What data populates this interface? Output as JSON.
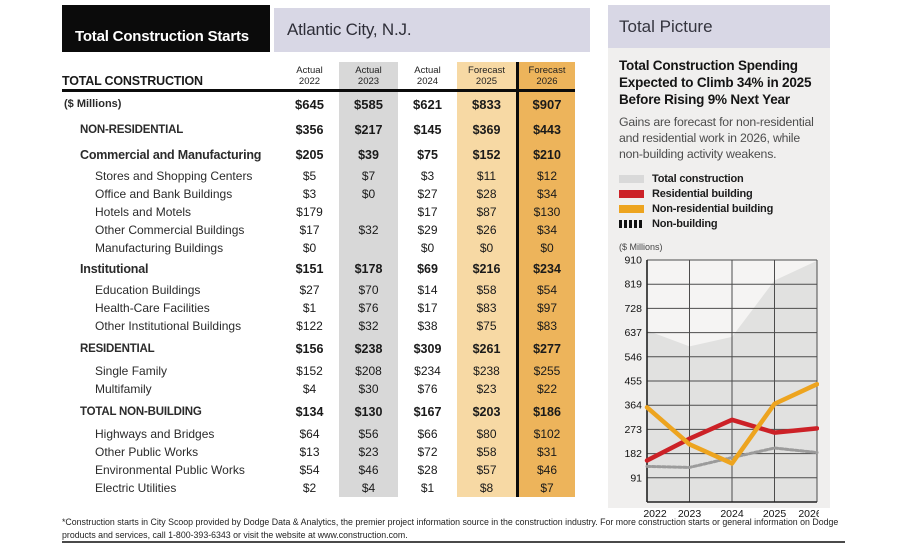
{
  "table": {
    "title": "Total Construction Starts",
    "location": "Atlantic City, N.J.",
    "corner_header": "TOTAL CONSTRUCTION",
    "columns": [
      {
        "period": "Actual",
        "year": "2022",
        "band": "none"
      },
      {
        "period": "Actual",
        "year": "2023",
        "band": "gray"
      },
      {
        "period": "Actual",
        "year": "2024",
        "band": "none"
      },
      {
        "period": "Forecast",
        "year": "2025",
        "band": "light-orange"
      },
      {
        "period": "Forecast",
        "year": "2026",
        "band": "dark-orange"
      }
    ],
    "rows": [
      {
        "label": "($ Millions)",
        "style": "millions",
        "values": [
          "$645",
          "$585",
          "$621",
          "$833",
          "$907"
        ]
      },
      {
        "label": "NON-RESIDENTIAL",
        "style": "section",
        "values": [
          "$356",
          "$217",
          "$145",
          "$369",
          "$443"
        ]
      },
      {
        "label": "Commercial and Manufacturing",
        "style": "group",
        "values": [
          "$205",
          "$39",
          "$75",
          "$152",
          "$210"
        ]
      },
      {
        "label": "Stores and Shopping Centers",
        "style": "sub",
        "values": [
          "$5",
          "$7",
          "$3",
          "$11",
          "$12"
        ]
      },
      {
        "label": "Office and Bank Buildings",
        "style": "sub",
        "values": [
          "$3",
          "$0",
          "$27",
          "$28",
          "$34"
        ]
      },
      {
        "label": "Hotels and Motels",
        "style": "sub",
        "values": [
          "$179",
          "",
          "$17",
          "$87",
          "$130"
        ]
      },
      {
        "label": "Other Commercial Buildings",
        "style": "sub",
        "values": [
          "$17",
          "$32",
          "$29",
          "$26",
          "$34"
        ]
      },
      {
        "label": "Manufacturing Buildings",
        "style": "sub",
        "values": [
          "$0",
          "",
          "$0",
          "$0",
          "$0"
        ]
      },
      {
        "label": "Institutional",
        "style": "group",
        "values": [
          "$151",
          "$178",
          "$69",
          "$216",
          "$234"
        ]
      },
      {
        "label": "Education Buildings",
        "style": "sub",
        "values": [
          "$27",
          "$70",
          "$14",
          "$58",
          "$54"
        ]
      },
      {
        "label": "Health-Care Facilities",
        "style": "sub",
        "values": [
          "$1",
          "$76",
          "$17",
          "$83",
          "$97"
        ]
      },
      {
        "label": "Other Institutional Buildings",
        "style": "sub",
        "values": [
          "$122",
          "$32",
          "$38",
          "$75",
          "$83"
        ]
      },
      {
        "label": "RESIDENTIAL",
        "style": "section",
        "values": [
          "$156",
          "$238",
          "$309",
          "$261",
          "$277"
        ]
      },
      {
        "label": "Single Family",
        "style": "sub",
        "values": [
          "$152",
          "$208",
          "$234",
          "$238",
          "$255"
        ]
      },
      {
        "label": "Multifamily",
        "style": "sub",
        "values": [
          "$4",
          "$30",
          "$76",
          "$23",
          "$22"
        ]
      },
      {
        "label": "TOTAL NON-BUILDING",
        "style": "section",
        "values": [
          "$134",
          "$130",
          "$167",
          "$203",
          "$186"
        ]
      },
      {
        "label": "Highways and Bridges",
        "style": "sub",
        "values": [
          "$64",
          "$56",
          "$66",
          "$80",
          "$102"
        ]
      },
      {
        "label": "Other Public Works",
        "style": "sub",
        "values": [
          "$13",
          "$23",
          "$72",
          "$58",
          "$31"
        ]
      },
      {
        "label": "Environmental Public Works",
        "style": "sub",
        "values": [
          "$54",
          "$46",
          "$28",
          "$57",
          "$46"
        ]
      },
      {
        "label": "Electric Utilities",
        "style": "sub",
        "values": [
          "$2",
          "$4",
          "$1",
          "$8",
          "$7"
        ]
      }
    ],
    "band_colors": {
      "gray": "#d8d8d8",
      "light_orange": "#f7d9a4",
      "dark_orange": "#edb45b"
    }
  },
  "side": {
    "title": "Total Picture",
    "headline": "Total Construction Spending Expected to Climb 34% in 2025 Before Rising 9% Next Year",
    "body": "Gains are forecast for non-residential and residential work in 2026, while non-building activity weakens.",
    "units_label": "($ Millions)",
    "legend": [
      {
        "label": "Total construction",
        "swatch": "#d9d9d9"
      },
      {
        "label": "Residential building",
        "swatch": "#cc2127"
      },
      {
        "label": "Non-residential building",
        "swatch": "#eda41f"
      },
      {
        "label": "Non-building",
        "swatch": "striped-black"
      }
    ]
  },
  "chart_data": {
    "type": "area",
    "title": "Total Picture",
    "xlabel": "",
    "ylabel": "($ Millions)",
    "x": [
      "2022",
      "2023",
      "2024",
      "2025",
      "2026"
    ],
    "ylim": [
      0,
      910
    ],
    "yticks": [
      91,
      182,
      273,
      364,
      455,
      546,
      637,
      728,
      819,
      910
    ],
    "grid": true,
    "legend_position": "above",
    "series": [
      {
        "name": "Total construction",
        "type": "area",
        "color": "#e1e1e0",
        "values": [
          645,
          585,
          621,
          833,
          907
        ]
      },
      {
        "name": "Non-building",
        "type": "line-dashed",
        "color": "#9b9b9b",
        "values": [
          134,
          130,
          167,
          203,
          186
        ]
      },
      {
        "name": "Residential building",
        "type": "line",
        "color": "#cc2127",
        "values": [
          156,
          238,
          309,
          261,
          277
        ]
      },
      {
        "name": "Non-residential building",
        "type": "line",
        "color": "#eda41f",
        "values": [
          356,
          217,
          145,
          369,
          443
        ]
      }
    ]
  },
  "footnote": "*Construction starts in City Scoop provided by Dodge Data & Analytics, the premier project information source in the construction industry. For more construction starts or general information on Dodge products and services, call 1-800-393-6343 or visit the website at www.construction.com."
}
